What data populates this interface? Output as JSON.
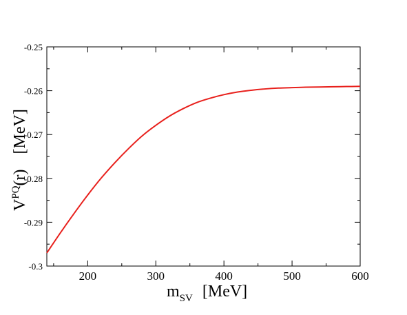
{
  "chart_data": {
    "type": "line",
    "title": "",
    "xlabel": {
      "main": "m",
      "sub": "SV",
      "unit": "[MeV]"
    },
    "ylabel": {
      "main": "V",
      "sup": "PQ",
      "arg": "(r)",
      "unit": "[MeV]"
    },
    "xlim": [
      140,
      600
    ],
    "ylim": [
      -0.3,
      -0.25
    ],
    "x_ticks": [
      200,
      300,
      400,
      500,
      600
    ],
    "x_tick_labels": [
      "200",
      "300",
      "400",
      "500",
      "600"
    ],
    "y_ticks": [
      -0.3,
      -0.29,
      -0.28,
      -0.27,
      -0.26,
      -0.25
    ],
    "y_tick_labels": [
      "-0.3",
      "-0.29",
      "-0.28",
      "-0.27",
      "-0.26",
      "-0.25"
    ],
    "grid": false,
    "legend": "none",
    "series": [
      {
        "color": "#e8201c",
        "x": [
          140,
          160,
          180,
          200,
          220,
          240,
          260,
          280,
          300,
          320,
          340,
          360,
          380,
          400,
          420,
          440,
          460,
          480,
          500,
          520,
          540,
          560,
          580,
          600
        ],
        "y": [
          -0.297,
          -0.2924,
          -0.288,
          -0.2838,
          -0.2799,
          -0.2764,
          -0.2732,
          -0.2703,
          -0.2679,
          -0.2658,
          -0.2641,
          -0.2627,
          -0.2617,
          -0.2609,
          -0.2603,
          -0.2599,
          -0.2596,
          -0.2594,
          -0.2593,
          -0.2592,
          -0.25915,
          -0.2591,
          -0.25905,
          -0.259
        ]
      }
    ]
  }
}
